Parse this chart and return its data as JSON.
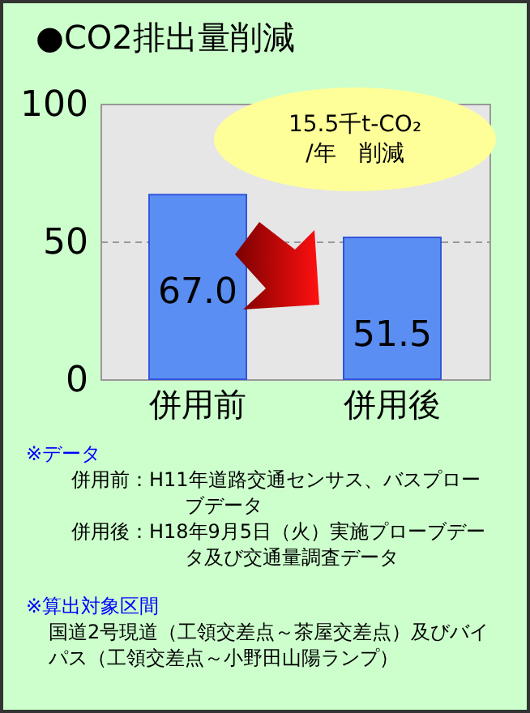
{
  "chart_data": {
    "type": "bar",
    "title": "●CO2排出量削減",
    "categories": [
      "併用前",
      "併用後"
    ],
    "values": [
      67.0,
      51.5
    ],
    "value_labels": [
      "67.0",
      "51.5"
    ],
    "color": "#5b8ef2",
    "ylim": [
      0,
      100
    ],
    "yticks": [
      0,
      50,
      100
    ],
    "grid": "y",
    "annotations": [
      "15.5千t-CO₂",
      "/年　削減",
      "※データ",
      "併用前：H11年道路交通センサス、バスプローブデータ",
      "併用後：H18年9月5日（火）実施プローブデータ及び交通量調査データ",
      "※算出対象区間",
      "国道2号現道（工領交差点～茶屋交差点）及びバイパス（工領交差点～小野田山陽ランプ）"
    ]
  }
}
